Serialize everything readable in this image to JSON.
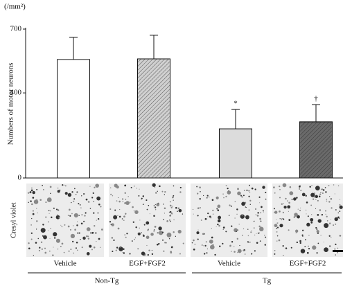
{
  "chart_data": {
    "type": "bar",
    "y_unit": "(/mm²)",
    "y_label": "Numbers of motor neurons",
    "categories": [
      "Vehicle",
      "EGF+FGF2",
      "Vehicle",
      "EGF+FGF2"
    ],
    "groups": [
      {
        "label": "Non-Tg",
        "span": [
          0,
          1
        ]
      },
      {
        "label": "Tg",
        "span": [
          2,
          3
        ]
      }
    ],
    "values": [
      557,
      560,
      231,
      264
    ],
    "errors": [
      104,
      111,
      91,
      81
    ],
    "colors": [
      "#ffffff",
      "#d0d0d0",
      "#dcdcdc",
      "#6a6a6a"
    ],
    "hatch": [
      false,
      true,
      false,
      true
    ],
    "annotations": [
      {
        "index": 2,
        "text": "*"
      },
      {
        "index": 3,
        "text": "†"
      }
    ],
    "ylim": [
      0,
      700
    ],
    "yticks": [
      0,
      400,
      700
    ],
    "image_row_label": "Cresyl violet"
  }
}
